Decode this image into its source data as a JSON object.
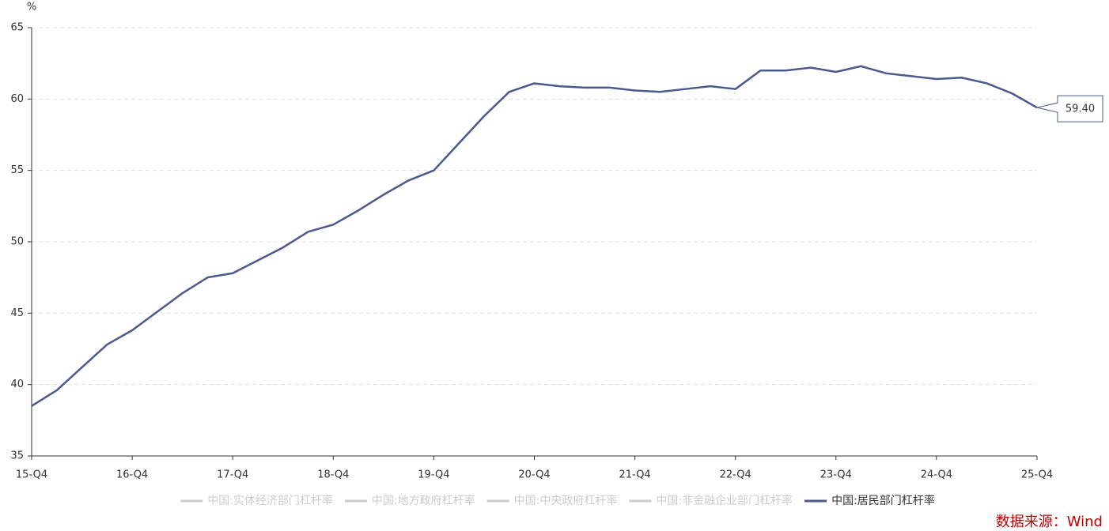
{
  "chart_data": {
    "type": "line",
    "y_label": "%",
    "categories": [
      "15-Q4",
      null,
      null,
      null,
      "16-Q4",
      null,
      null,
      null,
      "17-Q4",
      null,
      null,
      null,
      "18-Q4",
      null,
      null,
      null,
      "19-Q4",
      null,
      null,
      null,
      "20-Q4",
      null,
      null,
      null,
      "21-Q4",
      null,
      null,
      null,
      "22-Q4",
      null,
      null,
      null,
      "23-Q4",
      null,
      null,
      null,
      "24-Q4",
      null,
      null,
      null,
      "25-Q4"
    ],
    "ylim": [
      35,
      65
    ],
    "yticks": [
      35,
      40,
      45,
      50,
      55,
      60,
      65
    ],
    "grid": true,
    "series": [
      {
        "name": "中国:实体经济部门杠杆率",
        "color": "#cccccc",
        "hidden": true
      },
      {
        "name": "中国:地方政府杠杆率",
        "color": "#cccccc",
        "hidden": true
      },
      {
        "name": "中国:中央政府杠杆率",
        "color": "#cccccc",
        "hidden": true
      },
      {
        "name": "中国:非金融企业部门杠杆率",
        "color": "#cccccc",
        "hidden": true
      },
      {
        "name": "中国:居民部门杠杆率",
        "color": "#4a5a8c",
        "values": [
          38.5,
          39.6,
          41.2,
          42.8,
          43.8,
          45.1,
          46.4,
          47.5,
          47.8,
          48.7,
          49.6,
          50.7,
          51.2,
          52.2,
          53.3,
          54.3,
          55.0,
          56.9,
          58.8,
          60.5,
          61.1,
          60.9,
          60.8,
          60.8,
          60.6,
          60.5,
          60.7,
          60.9,
          60.7,
          62.0,
          62.0,
          62.2,
          61.9,
          62.3,
          61.8,
          61.6,
          61.4,
          61.5,
          61.1,
          60.4,
          59.4
        ],
        "value_labels": [
          null,
          null,
          null,
          null,
          null,
          null,
          null,
          null,
          null,
          null,
          null,
          null,
          null,
          null,
          null,
          null,
          null,
          null,
          null,
          null,
          null,
          null,
          null,
          null,
          null,
          null,
          null,
          null,
          null,
          null,
          null,
          null,
          null,
          null,
          null,
          null,
          null,
          null,
          null,
          null,
          "59.40"
        ]
      }
    ],
    "source": "数据来源：Wind"
  }
}
